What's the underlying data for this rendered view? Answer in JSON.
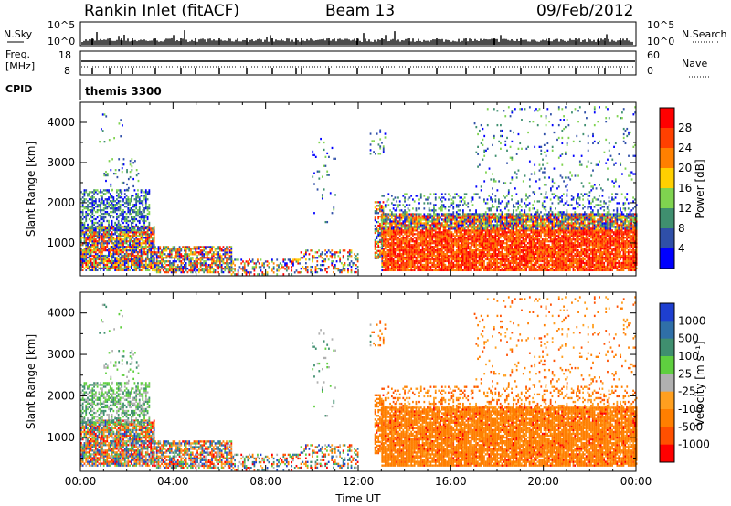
{
  "header": {
    "station": "Rankin Inlet (fitACF)",
    "beam": "Beam 13",
    "date": "09/Feb/2012",
    "cpid_label": "CPID",
    "cpid_value": "themis 3300"
  },
  "top_panels": {
    "nsky_label": "N.Sky",
    "nsearch_label": "N.Search",
    "nsky_ticks": [
      "10^5",
      "10^0"
    ],
    "nsky_right_ticks": [
      "10^5",
      "10^0"
    ],
    "freq_label_1": "Freq.",
    "freq_label_2": "[MHz]",
    "freq_ticks": [
      "18",
      "8"
    ],
    "nave_label": "Nave",
    "nave_ticks": [
      "60",
      "0"
    ]
  },
  "colors": {
    "power_scale": [
      "#0000ff",
      "#2f4fa8",
      "#3f8f6f",
      "#7fd34f",
      "#ffd000",
      "#ff8000",
      "#ff4000",
      "#ff0000"
    ],
    "velocity_scale": [
      "#1e3fd0",
      "#2f6fa8",
      "#3f8f6f",
      "#5fcf3f",
      "#b0b0b0",
      "#ff9f1f",
      "#ff7f00",
      "#ff5000",
      "#ff0000"
    ]
  },
  "chart_data": [
    {
      "type": "heatmap",
      "name": "power",
      "ylabel": "Slant Range [km]",
      "yticks": [
        "1000",
        "2000",
        "3000",
        "4000"
      ],
      "ylim": [
        180,
        4500
      ],
      "xlim": [
        0,
        24
      ],
      "colorbar_label": "Power [dB]",
      "colorbar_ticks": [
        "4",
        "8",
        "12",
        "16",
        "20",
        "24",
        "28"
      ],
      "colorbar_range": [
        0,
        32
      ]
    },
    {
      "type": "heatmap",
      "name": "velocity",
      "ylabel": "Slant Range [km]",
      "yticks": [
        "1000",
        "2000",
        "3000",
        "4000"
      ],
      "ylim": [
        180,
        4500
      ],
      "xlim": [
        0,
        24
      ],
      "xticks": [
        "00:00",
        "04:00",
        "08:00",
        "12:00",
        "16:00",
        "20:00",
        "00:00"
      ],
      "xlabel": "Time UT",
      "colorbar_label": "Velocity [m s⁻¹]",
      "colorbar_ticks": [
        "1000",
        "500",
        "100",
        "25",
        "-25",
        "-100",
        "-500",
        "-1000"
      ]
    }
  ]
}
